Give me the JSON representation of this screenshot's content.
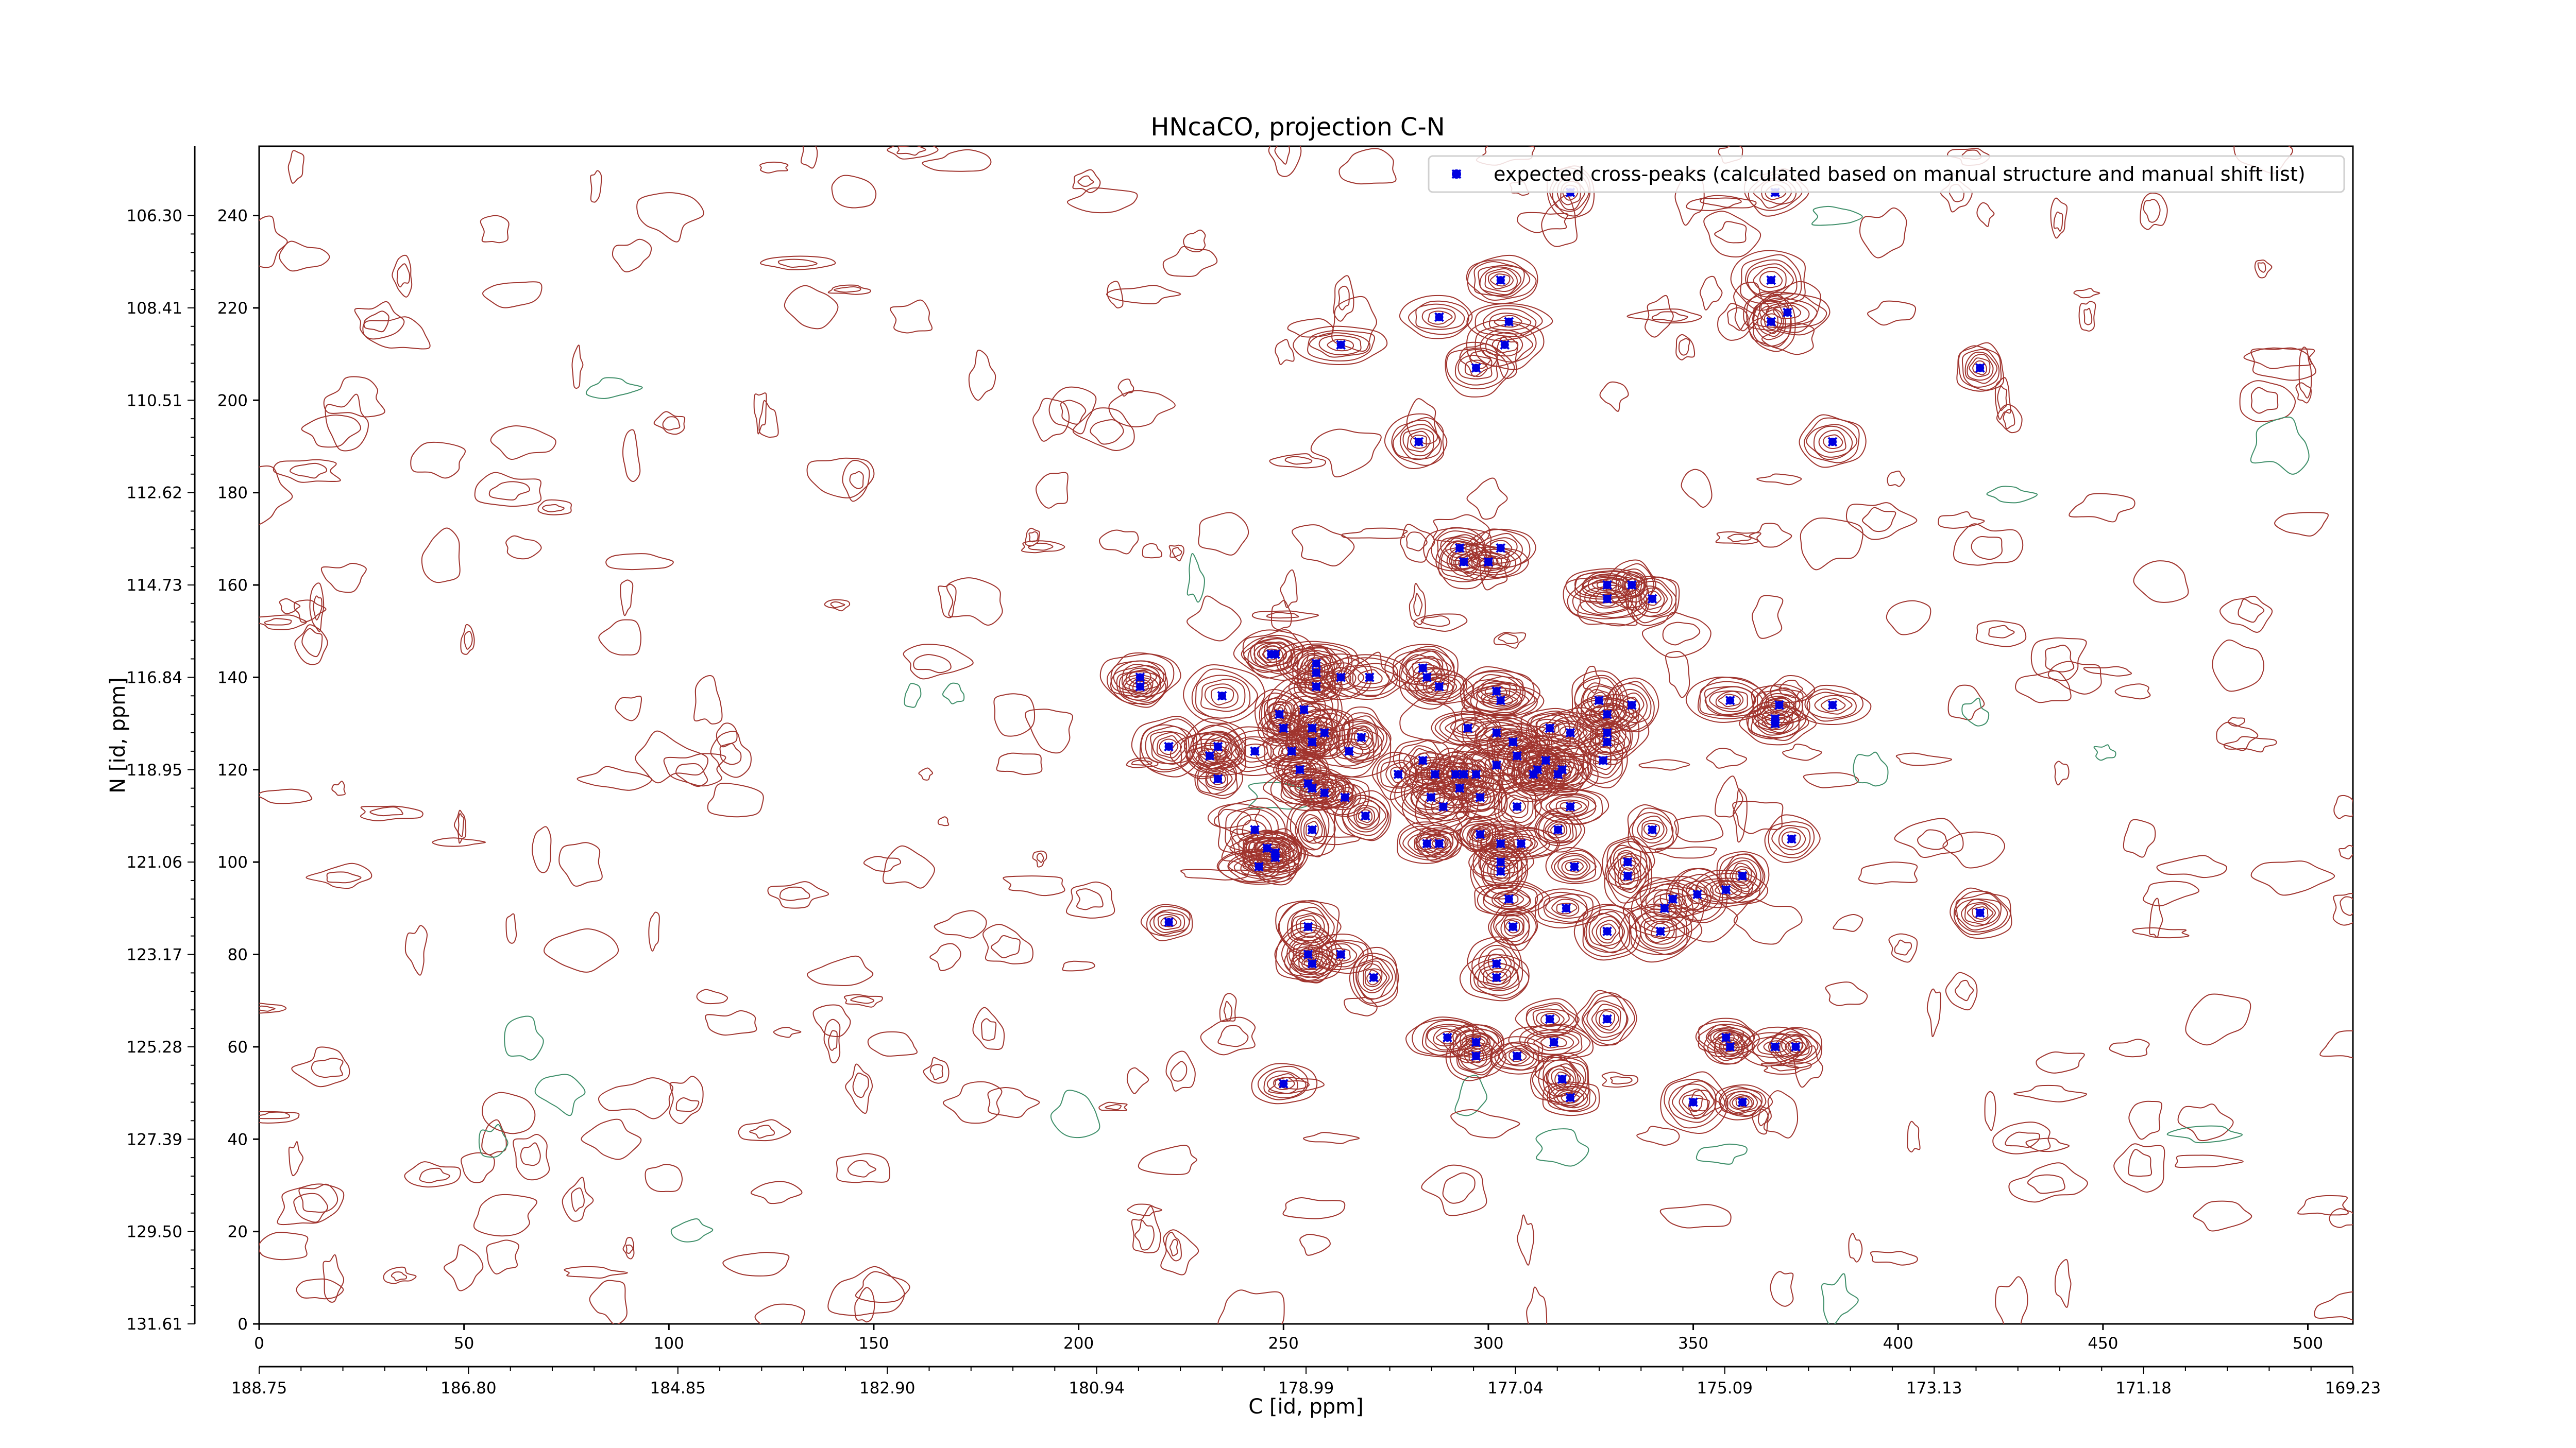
{
  "chart_data": {
    "type": "contour",
    "title": "HNcaCO, projection C-N",
    "xlabel": "C [id, ppm]",
    "ylabel": "N [id, ppm]",
    "xlim": [
      0,
      511
    ],
    "ylim": [
      0,
      255
    ],
    "x_ticks": [
      "0",
      "50",
      "100",
      "150",
      "200",
      "250",
      "300",
      "350",
      "400",
      "450",
      "500"
    ],
    "x_ppm_ticks": [
      "188.75",
      "186.80",
      "184.85",
      "182.90",
      "180.94",
      "178.99",
      "177.04",
      "175.09",
      "173.13",
      "171.18",
      "169.23"
    ],
    "y_ticks": [
      "0",
      "20",
      "40",
      "60",
      "80",
      "100",
      "120",
      "140",
      "160",
      "180",
      "200",
      "220",
      "240"
    ],
    "y_ppm_ticks": [
      "131.61",
      "129.50",
      "127.39",
      "125.28",
      "123.17",
      "121.06",
      "118.95",
      "116.84",
      "114.73",
      "112.62",
      "110.51",
      "108.41",
      "106.30"
    ],
    "legend": {
      "position": "top-right",
      "entries": [
        "expected cross-peaks (calculated based on manual structure and manual shift list)"
      ]
    },
    "colors": {
      "contour_positive": "#a0342e",
      "contour_negative": "#3f8f6a",
      "peak_marker": "#0000e0"
    },
    "series": [
      {
        "name": "expected cross-peaks (calculated based on manual structure and manual shift list)",
        "points": [
          [
            320,
            245
          ],
          [
            370,
            245
          ],
          [
            303,
            226
          ],
          [
            369,
            226
          ],
          [
            264,
            212
          ],
          [
            304,
            212
          ],
          [
            288,
            218
          ],
          [
            305,
            217
          ],
          [
            369,
            217
          ],
          [
            373,
            219
          ],
          [
            420,
            207
          ],
          [
            297,
            207
          ],
          [
            283,
            191
          ],
          [
            384,
            191
          ],
          [
            293,
            168
          ],
          [
            303,
            168
          ],
          [
            300,
            165
          ],
          [
            294,
            165
          ],
          [
            329,
            160
          ],
          [
            335,
            160
          ],
          [
            340,
            157
          ],
          [
            329,
            157
          ],
          [
            215,
            140
          ],
          [
            215,
            138
          ],
          [
            235,
            136
          ],
          [
            247,
            145
          ],
          [
            248,
            145
          ],
          [
            258,
            143
          ],
          [
            258,
            141
          ],
          [
            258,
            138
          ],
          [
            264,
            140
          ],
          [
            271,
            140
          ],
          [
            285,
            140
          ],
          [
            284,
            142
          ],
          [
            288,
            138
          ],
          [
            302,
            137
          ],
          [
            303,
            135
          ],
          [
            327,
            135
          ],
          [
            335,
            134
          ],
          [
            359,
            135
          ],
          [
            371,
            134
          ],
          [
            384,
            134
          ],
          [
            370,
            131
          ],
          [
            370,
            130
          ],
          [
            222,
            125
          ],
          [
            234,
            125
          ],
          [
            232,
            123
          ],
          [
            234,
            118
          ],
          [
            243,
            124
          ],
          [
            250,
            129
          ],
          [
            257,
            129
          ],
          [
            269,
            127
          ],
          [
            266,
            124
          ],
          [
            284,
            122
          ],
          [
            295,
            129
          ],
          [
            302,
            128
          ],
          [
            306,
            126
          ],
          [
            315,
            129
          ],
          [
            320,
            128
          ],
          [
            329,
            128
          ],
          [
            329,
            132
          ],
          [
            329,
            126
          ],
          [
            328,
            122
          ],
          [
            314,
            122
          ],
          [
            312,
            120
          ],
          [
            311,
            119
          ],
          [
            317,
            119
          ],
          [
            318,
            120
          ],
          [
            307,
            123
          ],
          [
            302,
            121
          ],
          [
            292,
            119
          ],
          [
            294,
            119
          ],
          [
            297,
            119
          ],
          [
            293,
            116
          ],
          [
            289,
            112
          ],
          [
            298,
            114
          ],
          [
            307,
            112
          ],
          [
            320,
            112
          ],
          [
            270,
            110
          ],
          [
            265,
            114
          ],
          [
            260,
            115
          ],
          [
            256,
            117
          ],
          [
            257,
            116
          ],
          [
            254,
            120
          ],
          [
            252,
            124
          ],
          [
            249,
            132
          ],
          [
            255,
            133
          ],
          [
            260,
            128
          ],
          [
            257,
            126
          ],
          [
            278,
            119
          ],
          [
            287,
            119
          ],
          [
            286,
            114
          ],
          [
            298,
            106
          ],
          [
            257,
            107
          ],
          [
            243,
            107
          ],
          [
            246,
            103
          ],
          [
            248,
            102
          ],
          [
            248,
            101
          ],
          [
            244,
            99
          ],
          [
            285,
            104
          ],
          [
            288,
            104
          ],
          [
            303,
            104
          ],
          [
            303,
            100
          ],
          [
            303,
            98
          ],
          [
            308,
            104
          ],
          [
            317,
            107
          ],
          [
            321,
            99
          ],
          [
            340,
            107
          ],
          [
            334,
            100
          ],
          [
            334,
            97
          ],
          [
            345,
            92
          ],
          [
            351,
            93
          ],
          [
            358,
            94
          ],
          [
            362,
            97
          ],
          [
            374,
            105
          ],
          [
            305,
            92
          ],
          [
            306,
            86
          ],
          [
            319,
            90
          ],
          [
            329,
            85
          ],
          [
            343,
            90
          ],
          [
            342,
            85
          ],
          [
            256,
            86
          ],
          [
            222,
            87
          ],
          [
            256,
            80
          ],
          [
            257,
            78
          ],
          [
            264,
            80
          ],
          [
            272,
            75
          ],
          [
            302,
            78
          ],
          [
            302,
            75
          ],
          [
            315,
            66
          ],
          [
            329,
            66
          ],
          [
            290,
            62
          ],
          [
            297,
            61
          ],
          [
            297,
            58
          ],
          [
            307,
            58
          ],
          [
            316,
            61
          ],
          [
            318,
            53
          ],
          [
            320,
            49
          ],
          [
            358,
            62
          ],
          [
            359,
            60
          ],
          [
            370,
            60
          ],
          [
            375,
            60
          ],
          [
            350,
            48
          ],
          [
            362,
            48
          ],
          [
            250,
            52
          ],
          [
            420,
            89
          ]
        ]
      }
    ]
  }
}
